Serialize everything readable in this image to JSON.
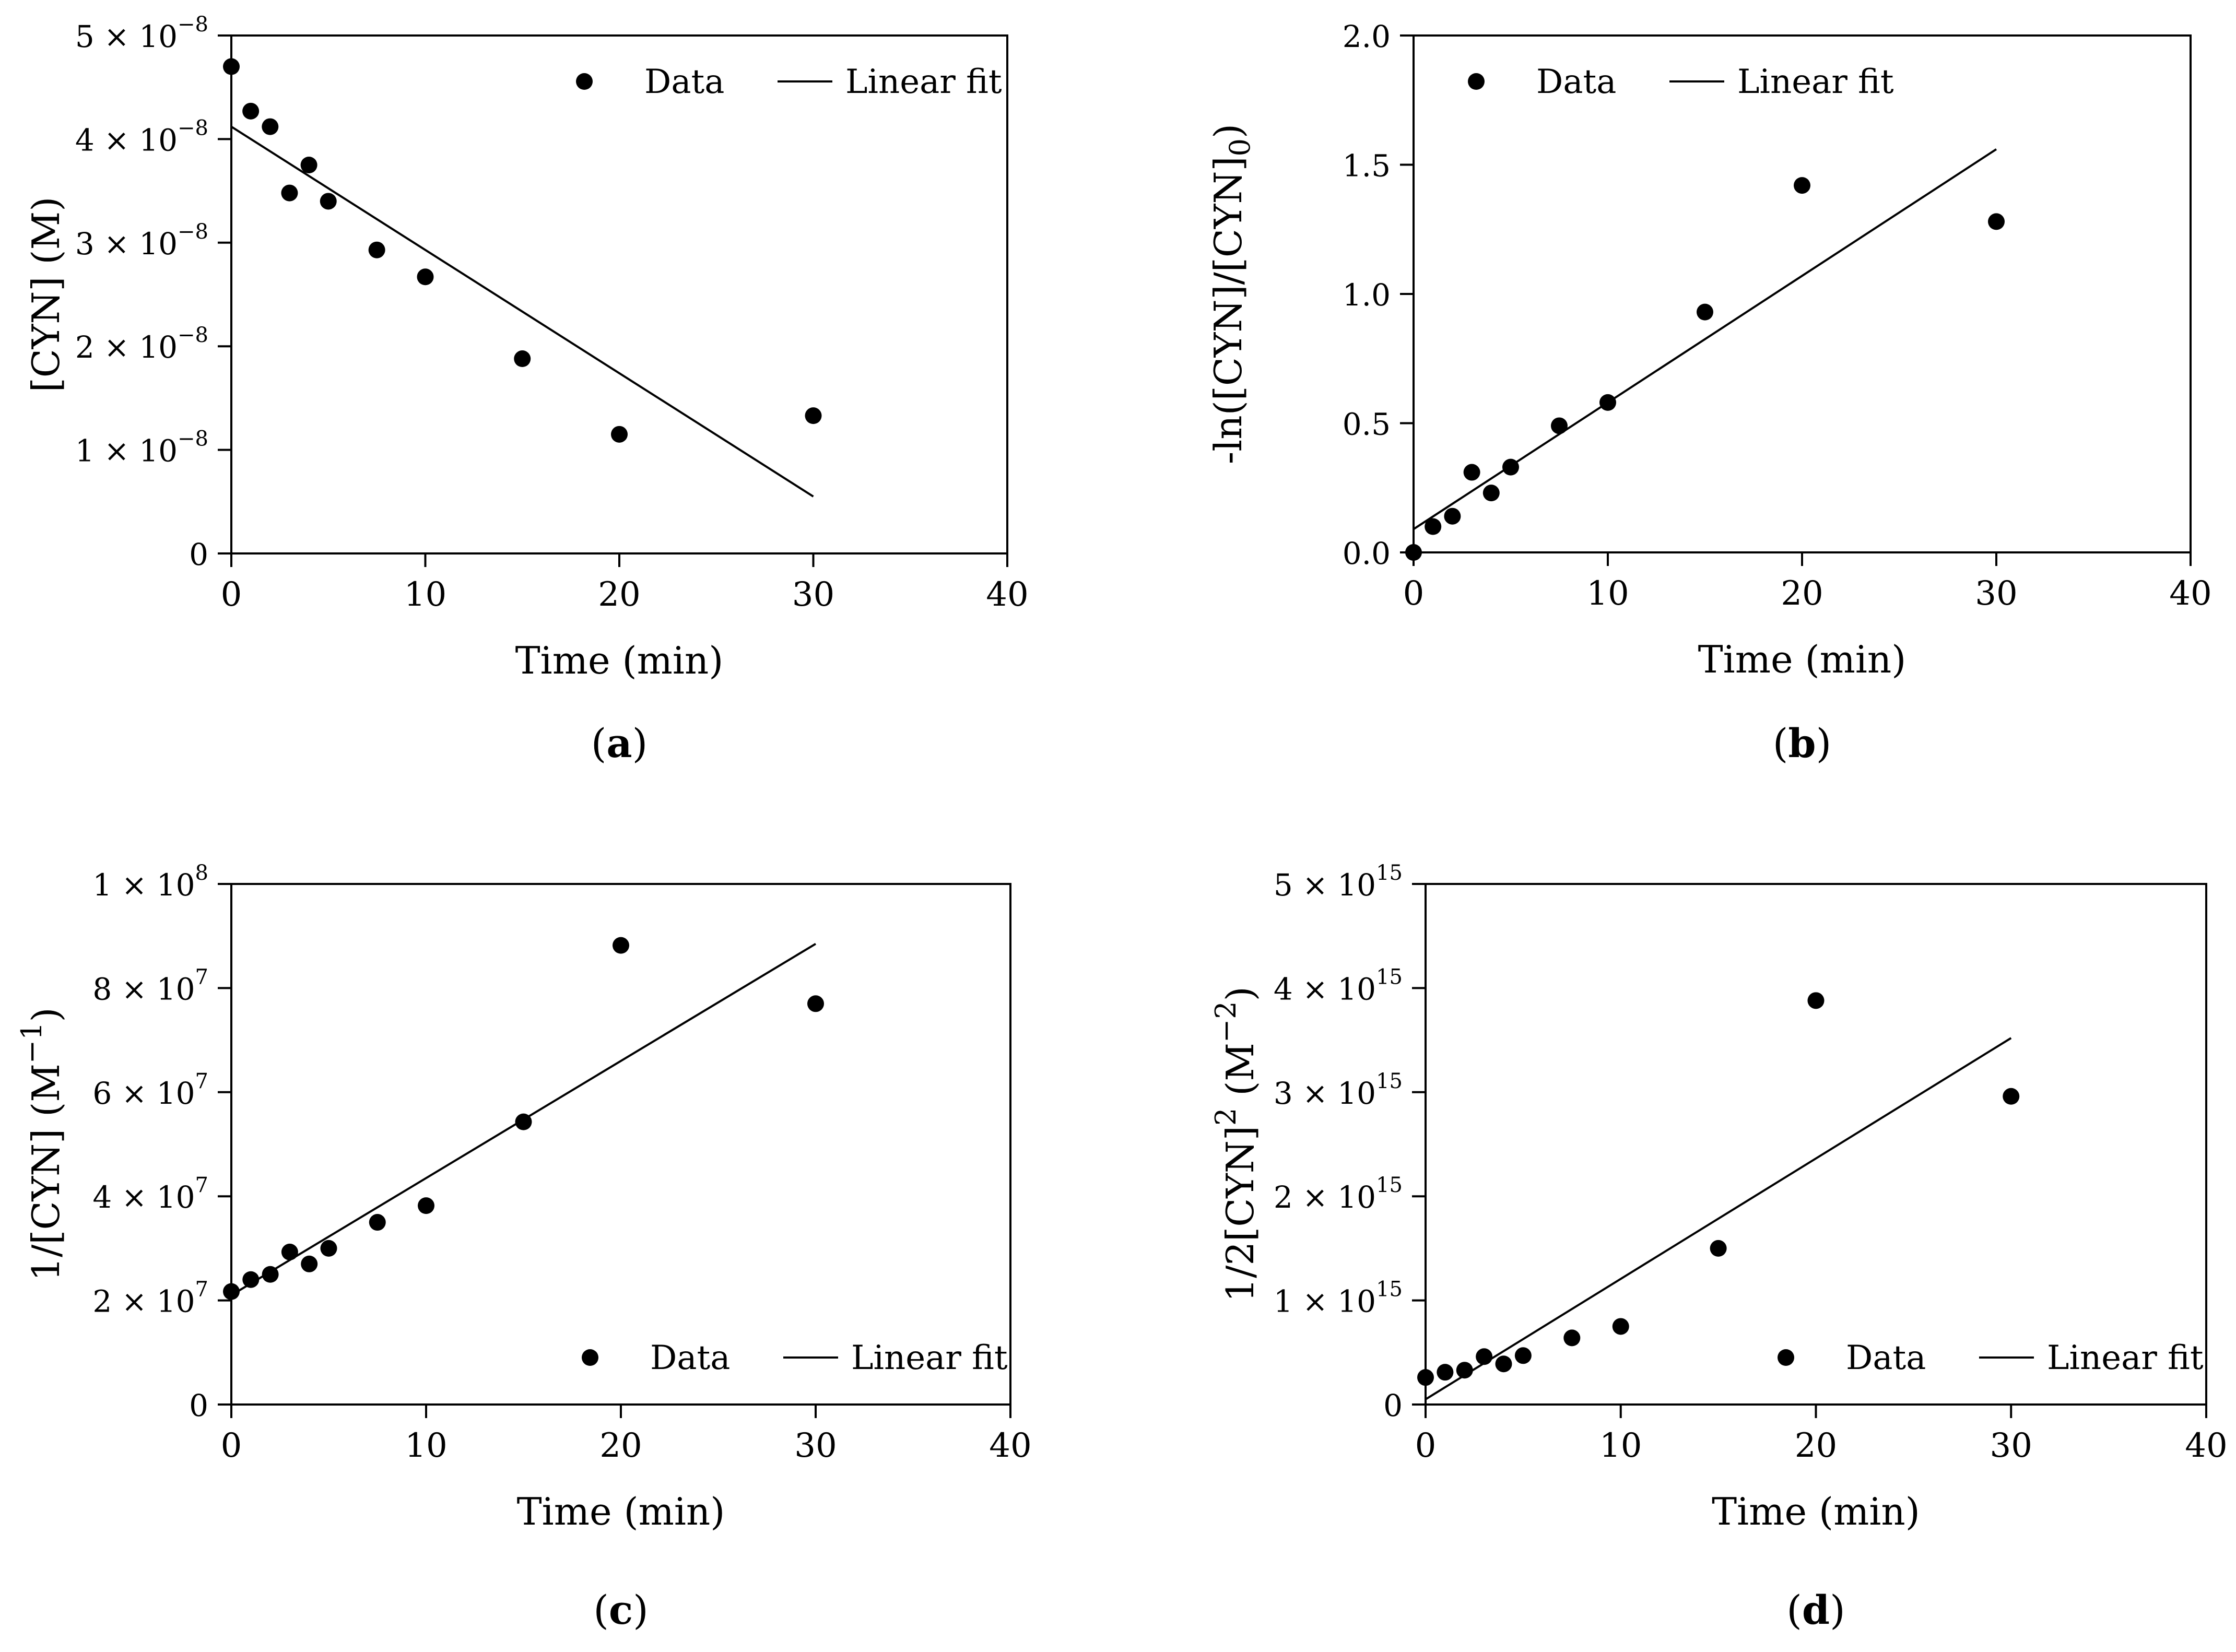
{
  "figure": {
    "marker_color": "#000000",
    "line_color": "#000000"
  },
  "chart_data": [
    {
      "type": "scatter",
      "panel_label": "a",
      "caption": "(a)",
      "xlabel": "Time (min)",
      "ylabel": "[CYN] (M)",
      "xlim": [
        0,
        40
      ],
      "ylim": [
        0,
        5e-08
      ],
      "x_ticks": [
        "0",
        "10",
        "20",
        "30",
        "40"
      ],
      "y_ticks": [
        {
          "mant": "0",
          "exp": ""
        },
        {
          "mant": "1 × 10",
          "exp": "−8"
        },
        {
          "mant": "2 × 10",
          "exp": "−8"
        },
        {
          "mant": "3 × 10",
          "exp": "−8"
        },
        {
          "mant": "4 × 10",
          "exp": "−8"
        },
        {
          "mant": "5 × 10",
          "exp": "−8"
        }
      ],
      "legend": {
        "placement": "top-right",
        "data_label": "Data",
        "fit_label": "Linear fit"
      },
      "series": [
        {
          "name": "Data",
          "kind": "scatter",
          "x": [
            0,
            1,
            2,
            3,
            4,
            5,
            7.5,
            10,
            15,
            20,
            30
          ],
          "y": [
            4.7e-08,
            4.27e-08,
            4.12e-08,
            3.48e-08,
            3.75e-08,
            3.4e-08,
            2.93e-08,
            2.67e-08,
            1.88e-08,
            1.15e-08,
            1.33e-08
          ]
        },
        {
          "name": "Linear fit",
          "kind": "line",
          "x": [
            0,
            30
          ],
          "y": [
            4.12e-08,
            5.5e-09
          ]
        }
      ]
    },
    {
      "type": "scatter",
      "panel_label": "b",
      "caption": "(b)",
      "xlabel": "Time (min)",
      "ylabel": "-ln([CYN]/[CYN]0)",
      "xlim": [
        0,
        40
      ],
      "ylim": [
        0,
        2.0
      ],
      "x_ticks": [
        "0",
        "10",
        "20",
        "30",
        "40"
      ],
      "y_ticks": [
        {
          "mant": "0.0",
          "exp": ""
        },
        {
          "mant": "0.5",
          "exp": ""
        },
        {
          "mant": "1.0",
          "exp": ""
        },
        {
          "mant": "1.5",
          "exp": ""
        },
        {
          "mant": "2.0",
          "exp": ""
        }
      ],
      "legend": {
        "placement": "top-left",
        "data_label": "Data",
        "fit_label": "Linear fit"
      },
      "series": [
        {
          "name": "Data",
          "kind": "scatter",
          "x": [
            0,
            1,
            2,
            3,
            4,
            5,
            7.5,
            10,
            15,
            20,
            30
          ],
          "y": [
            0.0,
            0.1,
            0.14,
            0.31,
            0.23,
            0.33,
            0.49,
            0.58,
            0.93,
            1.42,
            1.28
          ]
        },
        {
          "name": "Linear fit",
          "kind": "line",
          "x": [
            0,
            30
          ],
          "y": [
            0.09,
            1.56
          ]
        }
      ]
    },
    {
      "type": "scatter",
      "panel_label": "c",
      "caption": "(c)",
      "xlabel": "Time (min)",
      "ylabel": "1/[CYN] (M−1)",
      "xlim": [
        0,
        40
      ],
      "ylim": [
        0,
        100000000.0
      ],
      "x_ticks": [
        "0",
        "10",
        "20",
        "30",
        "40"
      ],
      "y_ticks": [
        {
          "mant": "0",
          "exp": ""
        },
        {
          "mant": "2 × 10",
          "exp": "7"
        },
        {
          "mant": "4 × 10",
          "exp": "7"
        },
        {
          "mant": "6 × 10",
          "exp": "7"
        },
        {
          "mant": "8 × 10",
          "exp": "7"
        },
        {
          "mant": "1 × 10",
          "exp": "8"
        }
      ],
      "legend": {
        "placement": "bottom-right",
        "data_label": "Data",
        "fit_label": "Linear fit"
      },
      "series": [
        {
          "name": "Data",
          "kind": "scatter",
          "x": [
            0,
            1,
            2,
            3,
            4,
            5,
            7.5,
            10,
            15,
            20,
            30
          ],
          "y": [
            21700000.0,
            24000000.0,
            25000000.0,
            29300000.0,
            27000000.0,
            30000000.0,
            35000000.0,
            38200000.0,
            54300000.0,
            88200000.0,
            77000000.0
          ]
        },
        {
          "name": "Linear fit",
          "kind": "line",
          "x": [
            0,
            30
          ],
          "y": [
            21000000.0,
            88500000.0
          ]
        }
      ]
    },
    {
      "type": "scatter",
      "panel_label": "d",
      "caption": "(d)",
      "xlabel": "Time (min)",
      "ylabel": "1/2[CYN]2 (M−2)",
      "xlim": [
        0,
        40
      ],
      "ylim": [
        0,
        5000000000000000.0
      ],
      "x_ticks": [
        "0",
        "10",
        "20",
        "30",
        "40"
      ],
      "y_ticks": [
        {
          "mant": "0",
          "exp": ""
        },
        {
          "mant": "1 × 10",
          "exp": "15"
        },
        {
          "mant": "2 × 10",
          "exp": "15"
        },
        {
          "mant": "3 × 10",
          "exp": "15"
        },
        {
          "mant": "4 × 10",
          "exp": "15"
        },
        {
          "mant": "5 × 10",
          "exp": "15"
        }
      ],
      "legend": {
        "placement": "bottom-right",
        "data_label": "Data",
        "fit_label": "Linear fit"
      },
      "series": [
        {
          "name": "Data",
          "kind": "scatter",
          "x": [
            0,
            1,
            2,
            3,
            4,
            5,
            7.5,
            10,
            15,
            20,
            30
          ],
          "y": [
            260000000000000.0,
            310000000000000.0,
            330000000000000.0,
            460000000000000.0,
            390000000000000.0,
            470000000000000.0,
            640000000000000.0,
            750000000000000.0,
            1500000000000000.0,
            3880000000000000.0,
            2960000000000000.0
          ]
        },
        {
          "name": "Linear fit",
          "kind": "line",
          "x": [
            0,
            30
          ],
          "y": [
            50000000000000.0,
            3520000000000000.0
          ]
        }
      ]
    }
  ]
}
